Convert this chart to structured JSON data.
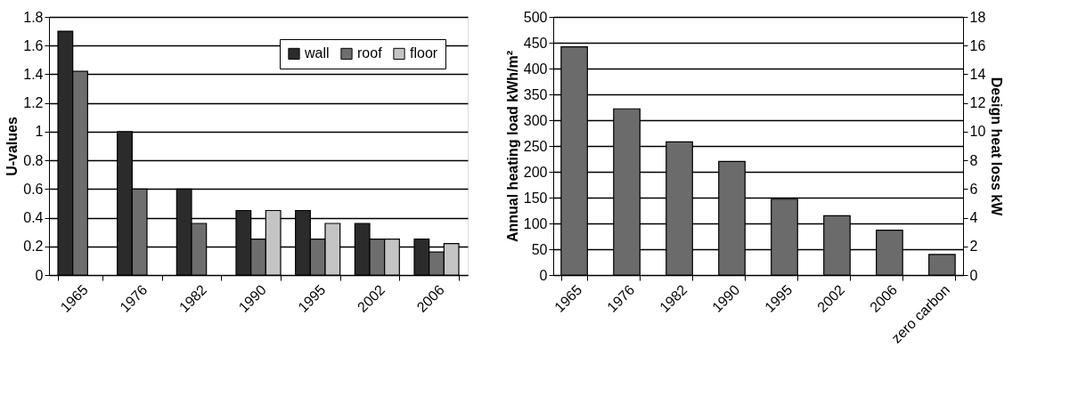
{
  "chart_data": [
    {
      "type": "bar",
      "ylabel": "U-values",
      "categories": [
        "1965",
        "1976",
        "1982",
        "1990",
        "1995",
        "2002",
        "2006"
      ],
      "series": [
        {
          "name": "wall",
          "color": "#2b2b2b",
          "values": [
            1.7,
            1.0,
            0.6,
            0.45,
            0.45,
            0.36,
            0.25
          ]
        },
        {
          "name": "roof",
          "color": "#6e6e6e",
          "values": [
            1.42,
            0.6,
            0.36,
            0.25,
            0.25,
            0.25,
            0.16
          ]
        },
        {
          "name": "floor",
          "color": "#c4c4c4",
          "values": [
            null,
            null,
            null,
            0.45,
            0.36,
            0.25,
            0.22
          ]
        }
      ],
      "ylim": [
        0,
        1.8
      ],
      "yticks": [
        0,
        0.2,
        0.4,
        0.6,
        0.8,
        1,
        1.2,
        1.4,
        1.6,
        1.8
      ],
      "grid": "y",
      "legend": "top right"
    },
    {
      "type": "bar",
      "ylabel": "Annual heating load kWh/m²",
      "y2label": "Design heat loss kW",
      "categories": [
        "1965",
        "1976",
        "1982",
        "1990",
        "1995",
        "2002",
        "2006",
        "zero carbon"
      ],
      "series": [
        {
          "color": "#6b6b6b",
          "values": [
            442,
            322,
            258,
            220,
            147,
            115,
            87,
            40
          ]
        }
      ],
      "ylim": [
        0,
        500
      ],
      "yticks": [
        0,
        50,
        100,
        150,
        200,
        250,
        300,
        350,
        400,
        450,
        500
      ],
      "y2lim": [
        0,
        18
      ],
      "y2ticks": [
        0,
        2,
        4,
        6,
        8,
        10,
        12,
        14,
        16,
        18
      ],
      "grid": "y"
    }
  ]
}
